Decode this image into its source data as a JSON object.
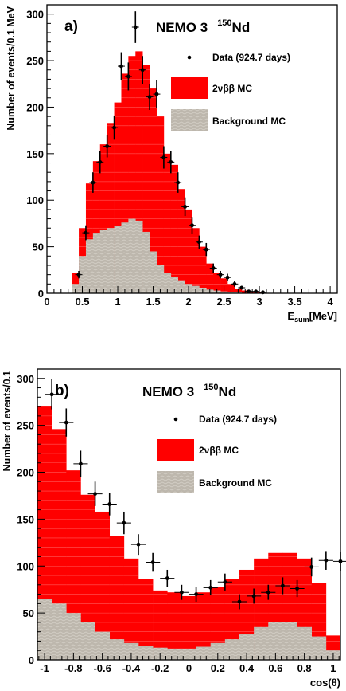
{
  "chart_data": [
    {
      "panel_label": "a)",
      "type": "bar",
      "experiment": "NEMO 3",
      "isotope_mass": "150",
      "isotope_symbol": "Nd",
      "xlabel_main": "E",
      "xlabel_sub": "sum",
      "xlabel_unit": "[MeV]",
      "ylabel": "Number of events/0.1 MeV",
      "xlim": [
        0,
        4.1
      ],
      "ylim": [
        0,
        310
      ],
      "xticks": [
        0,
        0.5,
        1,
        1.5,
        2,
        2.5,
        3,
        3.5,
        4
      ],
      "xtick_labels": [
        "0",
        "0.5",
        "1",
        "1.5",
        "2",
        "2.5",
        "3",
        "3.5",
        "4"
      ],
      "yticks": [
        50,
        100,
        150,
        200,
        250,
        300
      ],
      "ytick_labels": [
        "50",
        "100",
        "150",
        "200",
        "250",
        "300"
      ],
      "bin_width": 0.1,
      "legend": {
        "placement": "top-right",
        "data": "Data (924.7 days)",
        "mc": "2νββ MC",
        "bkg": "Background MC"
      },
      "colors": {
        "mc": "#ff0000",
        "bkg": "#bdb7ad",
        "data": "#000000"
      },
      "bins": [
        {
          "x": 0.4,
          "mc": 22,
          "bkg": 10
        },
        {
          "x": 0.5,
          "mc": 70,
          "bkg": 40
        },
        {
          "x": 0.6,
          "mc": 118,
          "bkg": 58
        },
        {
          "x": 0.7,
          "mc": 142,
          "bkg": 65
        },
        {
          "x": 0.8,
          "mc": 160,
          "bkg": 68
        },
        {
          "x": 0.9,
          "mc": 183,
          "bkg": 70
        },
        {
          "x": 1.0,
          "mc": 205,
          "bkg": 72
        },
        {
          "x": 1.1,
          "mc": 236,
          "bkg": 76
        },
        {
          "x": 1.2,
          "mc": 255,
          "bkg": 80
        },
        {
          "x": 1.3,
          "mc": 260,
          "bkg": 78
        },
        {
          "x": 1.4,
          "mc": 245,
          "bkg": 66
        },
        {
          "x": 1.5,
          "mc": 220,
          "bkg": 45
        },
        {
          "x": 1.6,
          "mc": 190,
          "bkg": 30
        },
        {
          "x": 1.7,
          "mc": 150,
          "bkg": 22
        },
        {
          "x": 1.8,
          "mc": 138,
          "bkg": 18
        },
        {
          "x": 1.9,
          "mc": 112,
          "bkg": 14
        },
        {
          "x": 2.0,
          "mc": 90,
          "bkg": 10
        },
        {
          "x": 2.1,
          "mc": 70,
          "bkg": 8
        },
        {
          "x": 2.2,
          "mc": 50,
          "bkg": 6
        },
        {
          "x": 2.3,
          "mc": 32,
          "bkg": 4
        },
        {
          "x": 2.4,
          "mc": 22,
          "bkg": 3
        },
        {
          "x": 2.5,
          "mc": 16,
          "bkg": 2
        },
        {
          "x": 2.6,
          "mc": 10,
          "bkg": 1
        },
        {
          "x": 2.7,
          "mc": 5,
          "bkg": 1
        },
        {
          "x": 2.8,
          "mc": 3,
          "bkg": 0
        },
        {
          "x": 2.9,
          "mc": 2,
          "bkg": 0
        },
        {
          "x": 3.0,
          "mc": 1,
          "bkg": 0
        }
      ],
      "data_points": [
        {
          "x": 0.45,
          "y": 20,
          "err": 4
        },
        {
          "x": 0.55,
          "y": 65,
          "err": 8
        },
        {
          "x": 0.65,
          "y": 119,
          "err": 11
        },
        {
          "x": 0.75,
          "y": 141,
          "err": 12
        },
        {
          "x": 0.85,
          "y": 158,
          "err": 12
        },
        {
          "x": 0.95,
          "y": 178,
          "err": 13
        },
        {
          "x": 1.05,
          "y": 244,
          "err": 15
        },
        {
          "x": 1.15,
          "y": 233,
          "err": 15
        },
        {
          "x": 1.25,
          "y": 286,
          "err": 17
        },
        {
          "x": 1.35,
          "y": 240,
          "err": 15
        },
        {
          "x": 1.45,
          "y": 211,
          "err": 14
        },
        {
          "x": 1.55,
          "y": 214,
          "err": 15
        },
        {
          "x": 1.65,
          "y": 146,
          "err": 12
        },
        {
          "x": 1.75,
          "y": 141,
          "err": 12
        },
        {
          "x": 1.85,
          "y": 119,
          "err": 11
        },
        {
          "x": 1.95,
          "y": 93,
          "err": 10
        },
        {
          "x": 2.05,
          "y": 73,
          "err": 9
        },
        {
          "x": 2.15,
          "y": 55,
          "err": 7
        },
        {
          "x": 2.25,
          "y": 47,
          "err": 7
        },
        {
          "x": 2.35,
          "y": 27,
          "err": 5
        },
        {
          "x": 2.45,
          "y": 20,
          "err": 4
        },
        {
          "x": 2.55,
          "y": 17,
          "err": 4
        },
        {
          "x": 2.65,
          "y": 10,
          "err": 3
        },
        {
          "x": 2.75,
          "y": 6,
          "err": 2
        },
        {
          "x": 2.85,
          "y": 2,
          "err": 1
        },
        {
          "x": 2.95,
          "y": 2,
          "err": 1
        },
        {
          "x": 3.05,
          "y": 1,
          "err": 1
        }
      ]
    },
    {
      "panel_label": "b)",
      "type": "bar",
      "experiment": "NEMO 3",
      "isotope_mass": "150",
      "isotope_symbol": "Nd",
      "xlabel_main": "cos(θ)",
      "xlabel_sub": "",
      "xlabel_unit": "",
      "ylabel": "Number of events/0.1",
      "xlim": [
        -1.05,
        1.05
      ],
      "ylim": [
        0,
        310
      ],
      "xticks": [
        -1,
        -0.8,
        -0.6,
        -0.4,
        -0.2,
        0,
        0.2,
        0.4,
        0.6,
        0.8,
        1
      ],
      "xtick_labels": [
        "-1",
        "-0.8",
        "-0.6",
        "-0.4",
        "-0.2",
        "0",
        "0.2",
        "0.4",
        "0.6",
        "0.8",
        "1"
      ],
      "yticks": [
        50,
        100,
        150,
        200,
        250,
        300
      ],
      "ytick_labels": [
        "50",
        "100",
        "150",
        "200",
        "250",
        "300"
      ],
      "bin_width": 0.1,
      "legend": {
        "placement": "top-right",
        "data": "Data (924.7 days)",
        "mc": "2νββ MC",
        "bkg": "Background MC"
      },
      "colors": {
        "mc": "#ff0000",
        "bkg": "#bdb7ad",
        "data": "#000000"
      },
      "bins": [
        {
          "x": -1.0,
          "mc": 270,
          "bkg": 65
        },
        {
          "x": -0.9,
          "mc": 246,
          "bkg": 60
        },
        {
          "x": -0.8,
          "mc": 202,
          "bkg": 50
        },
        {
          "x": -0.7,
          "mc": 176,
          "bkg": 40
        },
        {
          "x": -0.6,
          "mc": 158,
          "bkg": 30
        },
        {
          "x": -0.5,
          "mc": 132,
          "bkg": 22
        },
        {
          "x": -0.4,
          "mc": 108,
          "bkg": 18
        },
        {
          "x": -0.3,
          "mc": 86,
          "bkg": 15
        },
        {
          "x": -0.2,
          "mc": 74,
          "bkg": 13
        },
        {
          "x": -0.1,
          "mc": 72,
          "bkg": 12
        },
        {
          "x": 0.0,
          "mc": 68,
          "bkg": 12
        },
        {
          "x": 0.1,
          "mc": 72,
          "bkg": 14
        },
        {
          "x": 0.2,
          "mc": 78,
          "bkg": 18
        },
        {
          "x": 0.3,
          "mc": 86,
          "bkg": 22
        },
        {
          "x": 0.4,
          "mc": 96,
          "bkg": 28
        },
        {
          "x": 0.5,
          "mc": 108,
          "bkg": 35
        },
        {
          "x": 0.6,
          "mc": 114,
          "bkg": 40
        },
        {
          "x": 0.7,
          "mc": 114,
          "bkg": 40
        },
        {
          "x": 0.8,
          "mc": 108,
          "bkg": 35
        },
        {
          "x": 0.9,
          "mc": 82,
          "bkg": 25
        },
        {
          "x": 1.0,
          "mc": 26,
          "bkg": 10
        }
      ],
      "data_points": [
        {
          "x": -0.95,
          "y": 283,
          "err": 16
        },
        {
          "x": -0.85,
          "y": 253,
          "err": 15
        },
        {
          "x": -0.75,
          "y": 209,
          "err": 14
        },
        {
          "x": -0.65,
          "y": 177,
          "err": 13
        },
        {
          "x": -0.55,
          "y": 166,
          "err": 12
        },
        {
          "x": -0.45,
          "y": 146,
          "err": 12
        },
        {
          "x": -0.35,
          "y": 123,
          "err": 11
        },
        {
          "x": -0.25,
          "y": 104,
          "err": 10
        },
        {
          "x": -0.15,
          "y": 87,
          "err": 9
        },
        {
          "x": -0.05,
          "y": 72,
          "err": 8
        },
        {
          "x": 0.05,
          "y": 70,
          "err": 8
        },
        {
          "x": 0.15,
          "y": 77,
          "err": 8
        },
        {
          "x": 0.25,
          "y": 83,
          "err": 9
        },
        {
          "x": 0.35,
          "y": 62,
          "err": 8
        },
        {
          "x": 0.45,
          "y": 68,
          "err": 8
        },
        {
          "x": 0.55,
          "y": 72,
          "err": 8
        },
        {
          "x": 0.65,
          "y": 79,
          "err": 9
        },
        {
          "x": 0.75,
          "y": 76,
          "err": 9
        },
        {
          "x": 0.85,
          "y": 99,
          "err": 10
        },
        {
          "x": 0.95,
          "y": 106,
          "err": 10
        },
        {
          "x": 1.05,
          "y": 105,
          "err": 10
        }
      ]
    }
  ]
}
